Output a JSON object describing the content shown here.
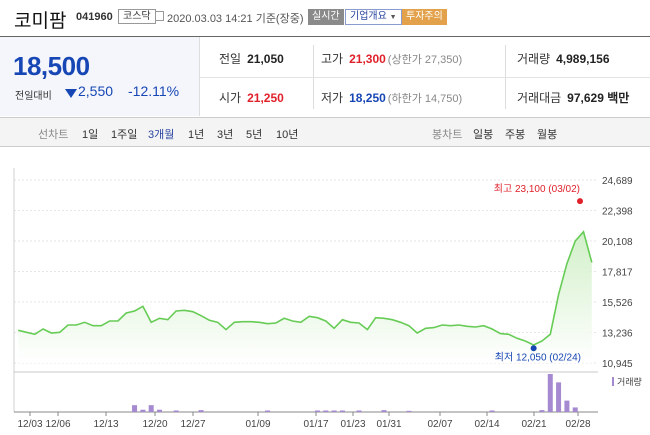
{
  "stock": {
    "name": "코미팜",
    "code": "041960",
    "market": "코스닥",
    "datetime": "2020.03.03 14:21 기준(장중)",
    "live_label": "실시간",
    "corp_label": "기업개요",
    "warning_label": "투자주의"
  },
  "quote": {
    "price": "18,500",
    "prev_label": "전일대비",
    "change": "2,550",
    "rate": "-12.11%",
    "prev_close_label": "전일",
    "prev_close": "21,050",
    "high_label": "고가",
    "high": "21,300",
    "upper_limit": "(상한가 27,350)",
    "volume_label": "거래량",
    "volume": "4,989,156",
    "open_label": "시가",
    "open": "21,250",
    "low_label": "저가",
    "low": "18,250",
    "lower_limit": "(하한가 14,750)",
    "amount_label": "거래대금",
    "amount": "97,629 백만"
  },
  "toolbar": {
    "line_label": "선차트",
    "periods": [
      "1일",
      "1주일",
      "3개월",
      "1년",
      "3년",
      "5년",
      "10년"
    ],
    "selected_period": "3개월",
    "candle_label": "봉차트",
    "candles": [
      "일봉",
      "주봉",
      "월봉"
    ]
  },
  "colors": {
    "up": "#e0212b",
    "down": "#1746b5",
    "line": "#66cc55",
    "volume": "#a58ad1"
  },
  "chart_data": {
    "type": "area",
    "y_ticks": [
      "24,689",
      "22,398",
      "20,108",
      "17,817",
      "15,526",
      "13,236",
      "10,945"
    ],
    "ylim": [
      10945,
      24689
    ],
    "x_ticks": [
      "12/03",
      "12/06",
      "12/13",
      "12/20",
      "12/27",
      "01/09",
      "01/17",
      "01/23",
      "01/31",
      "02/07",
      "02/14",
      "02/21",
      "02/28"
    ],
    "annotation_high": "최고 23,100 (03/02)",
    "annotation_low": "최저 12,050 (02/24)",
    "high_value": 23100,
    "low_value": 12050,
    "volume_legend": "거래량",
    "series": [
      {
        "values": [
          13400,
          13250,
          13100,
          13500,
          13200,
          13250,
          13800,
          13800,
          14000,
          13750,
          13750,
          14100,
          14100,
          14700,
          14850,
          15200,
          14000,
          14300,
          14200,
          14850,
          14900,
          14800,
          14500,
          14150,
          14000,
          13450,
          14000,
          14050,
          14050,
          14000,
          13900,
          13950,
          14300,
          14100,
          14000,
          14450,
          14350,
          14100,
          13550,
          14200,
          14000,
          13950,
          13450,
          14350,
          14300,
          14200,
          14000,
          13750,
          13200,
          13550,
          13600,
          13800,
          13750,
          13800,
          13700,
          13650,
          13750,
          13500,
          13150,
          13100,
          12800,
          12600,
          12300,
          12600,
          13100,
          16100,
          18400,
          20100,
          20800,
          18500
        ]
      }
    ],
    "volume": [
      0,
      0,
      0,
      0,
      0,
      0,
      0,
      0,
      0,
      0,
      0,
      0,
      0,
      0,
      0.18,
      0.06,
      0.18,
      0.06,
      0,
      0.04,
      0,
      0,
      0.05,
      0,
      0,
      0,
      0,
      0,
      0,
      0,
      0.04,
      0,
      0,
      0,
      0,
      0,
      0.04,
      0.04,
      0.04,
      0.04,
      0,
      0.04,
      0,
      0,
      0.05,
      0,
      0,
      0.03,
      0,
      0,
      0,
      0,
      0,
      0,
      0,
      0,
      0,
      0.04,
      0,
      0,
      0,
      0,
      0,
      0.05,
      1.0,
      0.78,
      0.3,
      0.12,
      0,
      0
    ]
  }
}
